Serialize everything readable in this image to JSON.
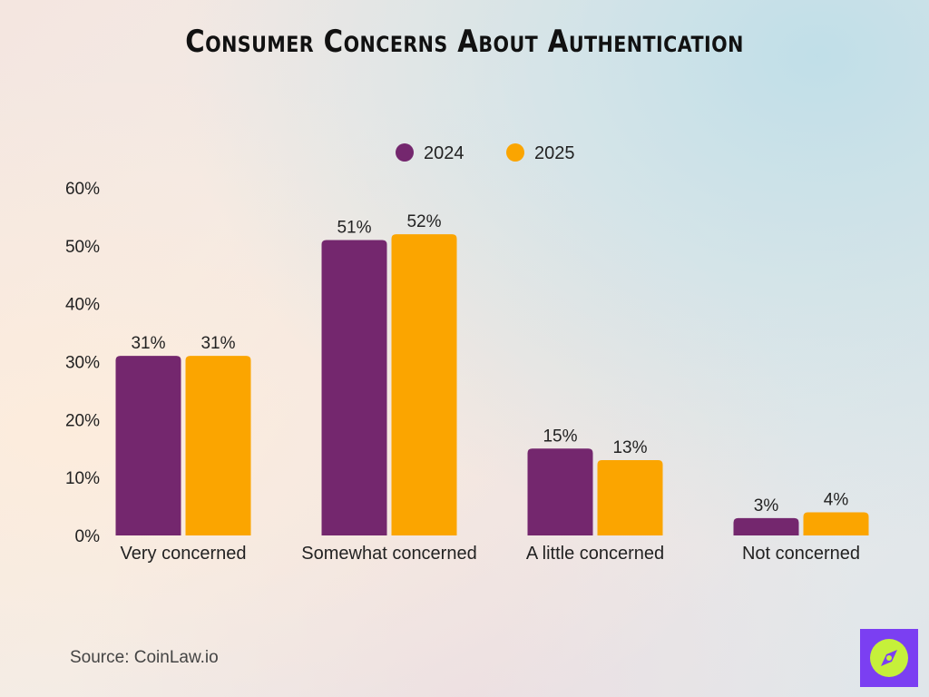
{
  "title": "Consumer Concerns About Authentication",
  "source": "Source: CoinLaw.io",
  "logo": {
    "icon": "compass-icon",
    "bg": "#7b3ff2",
    "circle": "#c6f03a"
  },
  "chart_data": {
    "type": "bar",
    "categories": [
      "Very concerned",
      "Somewhat concerned",
      "A little concerned",
      "Not concerned"
    ],
    "series": [
      {
        "name": "2024",
        "color": "#74276e",
        "values": [
          31,
          51,
          15,
          3
        ],
        "labels": [
          "31%",
          "51%",
          "15%",
          "3%"
        ]
      },
      {
        "name": "2025",
        "color": "#fba500",
        "values": [
          31,
          52,
          13,
          4
        ],
        "labels": [
          "31%",
          "52%",
          "13%",
          "4%"
        ]
      }
    ],
    "ylim": [
      0,
      60
    ],
    "yticks": [
      0,
      10,
      20,
      30,
      40,
      50,
      60
    ],
    "ytick_labels": [
      "0%",
      "10%",
      "20%",
      "30%",
      "40%",
      "50%",
      "60%"
    ],
    "xlabel": "",
    "ylabel": "",
    "legend": "top-center",
    "grid": false
  }
}
